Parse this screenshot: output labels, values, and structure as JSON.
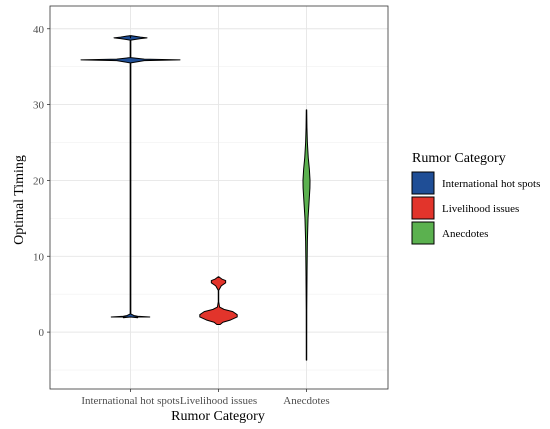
{
  "chart_data": {
    "type": "violin",
    "title": "",
    "xlabel": "Rumor Category",
    "ylabel": "Optimal Timing",
    "categories": [
      "International hot spots",
      "Livelihood issues",
      "Anecdotes"
    ],
    "ylim": [
      -7.5,
      43
    ],
    "yticks": [
      0,
      10,
      20,
      30,
      40
    ],
    "grid": true,
    "legend": {
      "title": "Rumor Category",
      "position": "right",
      "entries": [
        "International hot spots",
        "Livelihood issues",
        "Anecdotes"
      ]
    },
    "colors": [
      "#1f4e96",
      "#e2342b",
      "#5bb14f"
    ],
    "series": [
      {
        "name": "International hot spots",
        "min": 2.0,
        "max": 38.8,
        "density": [
          [
            2.0,
            0.06
          ],
          [
            1.9,
            0.13
          ],
          [
            2.0,
            0.35
          ],
          [
            2.1,
            0.13
          ],
          [
            2.2,
            0.06
          ],
          [
            2.4,
            0.006
          ],
          [
            35.5,
            0.006
          ],
          [
            35.8,
            0.25
          ],
          [
            35.9,
            0.9
          ],
          [
            36.0,
            0.25
          ],
          [
            36.2,
            0.006
          ],
          [
            38.5,
            0.006
          ],
          [
            38.7,
            0.18
          ],
          [
            38.8,
            0.3
          ],
          [
            38.9,
            0.18
          ],
          [
            39.1,
            0.006
          ]
        ]
      },
      {
        "name": "Livelihood issues",
        "min": 1.0,
        "max": 7.2,
        "density": [
          [
            1.0,
            0.03
          ],
          [
            1.3,
            0.08
          ],
          [
            1.6,
            0.22
          ],
          [
            2.0,
            0.34
          ],
          [
            2.3,
            0.34
          ],
          [
            2.7,
            0.26
          ],
          [
            3.0,
            0.1
          ],
          [
            3.3,
            0.02
          ],
          [
            4.0,
            0.004
          ],
          [
            5.5,
            0.004
          ],
          [
            6.1,
            0.05
          ],
          [
            6.5,
            0.13
          ],
          [
            6.8,
            0.13
          ],
          [
            7.0,
            0.06
          ],
          [
            7.3,
            0.005
          ]
        ]
      },
      {
        "name": "Anecdotes",
        "min": -3.7,
        "max": 29.3,
        "density": [
          [
            -3.7,
            0.004
          ],
          [
            3.0,
            0.005
          ],
          [
            8.0,
            0.01
          ],
          [
            12.0,
            0.016
          ],
          [
            15.0,
            0.028
          ],
          [
            17.0,
            0.045
          ],
          [
            19.0,
            0.062
          ],
          [
            20.0,
            0.064
          ],
          [
            21.5,
            0.052
          ],
          [
            23.0,
            0.032
          ],
          [
            25.0,
            0.016
          ],
          [
            27.0,
            0.008
          ],
          [
            29.3,
            0.004
          ]
        ]
      }
    ]
  }
}
